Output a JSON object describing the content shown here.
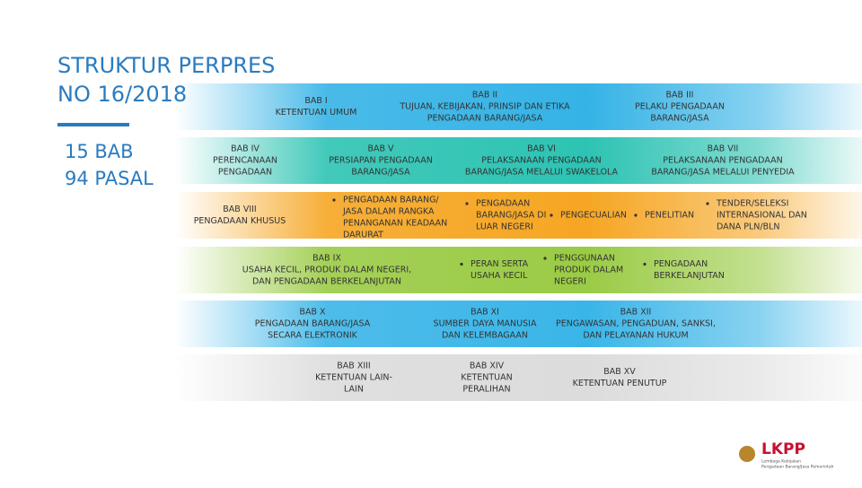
{
  "header": {
    "title": [
      "STRUKTUR PERPRES",
      "NO 16/2018"
    ],
    "summary": [
      "15 BAB",
      "94 PASAL"
    ]
  },
  "bands": [
    {
      "color": "#35b3e6",
      "cells": [
        {
          "lines": [
            "BAB I",
            "KETENTUAN UMUM"
          ]
        },
        {
          "lines": [
            "BAB II",
            "TUJUAN, KEBIJAKAN, PRINSIP DAN ETIKA",
            "PENGADAAN BARANG/JASA"
          ]
        },
        {
          "lines": [
            "BAB III",
            "PELAKU PENGADAAN",
            "BARANG/JASA"
          ]
        }
      ],
      "points": []
    },
    {
      "color": "#2dc3b3",
      "cells": [
        {
          "lines": [
            "BAB IV",
            "PERENCANAAN",
            "PENGADAAN"
          ]
        },
        {
          "lines": [
            "BAB V",
            "PERSIAPAN PENGADAAN",
            "BARANG/JASA"
          ]
        },
        {
          "lines": [
            "BAB VI",
            "PELAKSANAAN PENGADAAN",
            "BARANG/JASA MELALUI SWAKELOLA"
          ]
        },
        {
          "lines": [
            "BAB VII",
            "PELAKSANAAN PENGADAAN",
            "BARANG/JASA MELALUI PENYEDIA"
          ]
        }
      ],
      "points": []
    },
    {
      "color": "#f6a623",
      "cells": [
        {
          "lines": [
            "BAB VIII",
            "PENGADAAN KHUSUS"
          ]
        }
      ],
      "points": [
        {
          "lines": [
            "PENGADAAN BARANG/",
            "JASA DALAM RANGKA",
            "PENANGANAN KEADAAN",
            "DARURAT"
          ]
        },
        {
          "lines": [
            "PENGADAAN",
            "BARANG/JASA DI",
            "LUAR NEGERI"
          ]
        },
        {
          "lines": [
            "PENGECUALIAN"
          ]
        },
        {
          "lines": [
            "PENELITIAN"
          ]
        },
        {
          "lines": [
            "TENDER/SELEKSI",
            "INTERNASIONAL DAN",
            "DANA PLN/BLN"
          ]
        }
      ]
    },
    {
      "color": "#9acb45",
      "cells": [
        {
          "lines": [
            "BAB IX",
            "USAHA KECIL, PRODUK DALAM NEGERI,",
            "DAN PENGADAAN BERKELANJUTAN"
          ]
        }
      ],
      "points": [
        {
          "lines": [
            "PERAN SERTA",
            "USAHA KECIL"
          ]
        },
        {
          "lines": [
            "PENGGUNAAN",
            "PRODUK DALAM",
            "NEGERI"
          ]
        },
        {
          "lines": [
            "PENGADAAN",
            "BERKELANJUTAN"
          ]
        }
      ]
    },
    {
      "color": "#3ab5e8",
      "cells": [
        {
          "lines": [
            "BAB X",
            "PENGADAAN BARANG/JASA",
            "SECARA ELEKTRONIK"
          ]
        },
        {
          "lines": [
            "BAB XI",
            "SUMBER DAYA MANUSIA",
            "DAN KELEMBAGAAN"
          ]
        },
        {
          "lines": [
            "BAB XII",
            "PENGAWASAN, PENGADUAN, SANKSI,",
            "DAN PELAYANAN HUKUM"
          ]
        }
      ],
      "points": []
    },
    {
      "color": "#dcdcdc",
      "cells": [
        {
          "lines": [
            "BAB XIII",
            "KETENTUAN LAIN-",
            "LAIN"
          ]
        },
        {
          "lines": [
            "BAB XIV",
            "KETENTUAN",
            "PERALIHAN"
          ]
        },
        {
          "lines": [
            "BAB XV",
            "KETENTUAN PENUTUP"
          ]
        }
      ],
      "points": []
    }
  ],
  "logo": {
    "name": "LKPP",
    "tagline": [
      "Lembaga Kebijakan",
      "Pengadaan Barang/Jasa Pemerintah"
    ]
  }
}
